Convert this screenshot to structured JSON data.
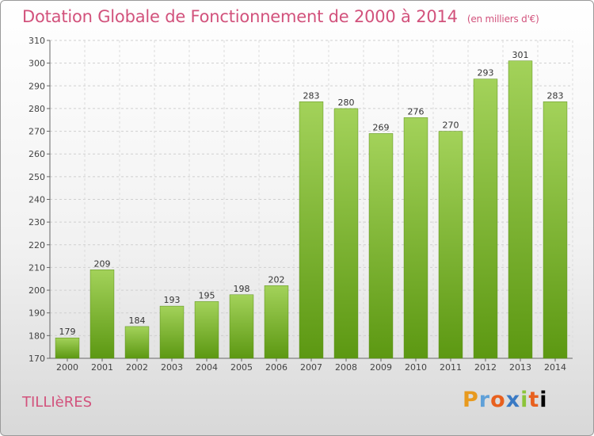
{
  "title": "Dotation Globale de Fonctionnement de 2000 à 2014",
  "subtitle": "(en milliers d'€)",
  "commune": "TILLIèRES",
  "logo": {
    "letters": [
      "P",
      "r",
      "o",
      "x",
      "i",
      "t",
      "i"
    ]
  },
  "colors": {
    "bar_light": "#9ccd4e",
    "bar_dark": "#5f9a13",
    "title": "#d2527c"
  },
  "chart_data": {
    "type": "bar",
    "categories": [
      "2000",
      "2001",
      "2002",
      "2003",
      "2004",
      "2005",
      "2006",
      "2007",
      "2008",
      "2009",
      "2010",
      "2011",
      "2012",
      "2013",
      "2014"
    ],
    "values": [
      179,
      209,
      184,
      193,
      195,
      198,
      202,
      283,
      280,
      269,
      276,
      270,
      293,
      301,
      283
    ],
    "ylim": [
      170,
      310
    ],
    "yticks": [
      170,
      180,
      190,
      200,
      210,
      220,
      230,
      240,
      250,
      260,
      270,
      280,
      290,
      300,
      310
    ],
    "grid": true,
    "xlabel": "",
    "ylabel": ""
  }
}
